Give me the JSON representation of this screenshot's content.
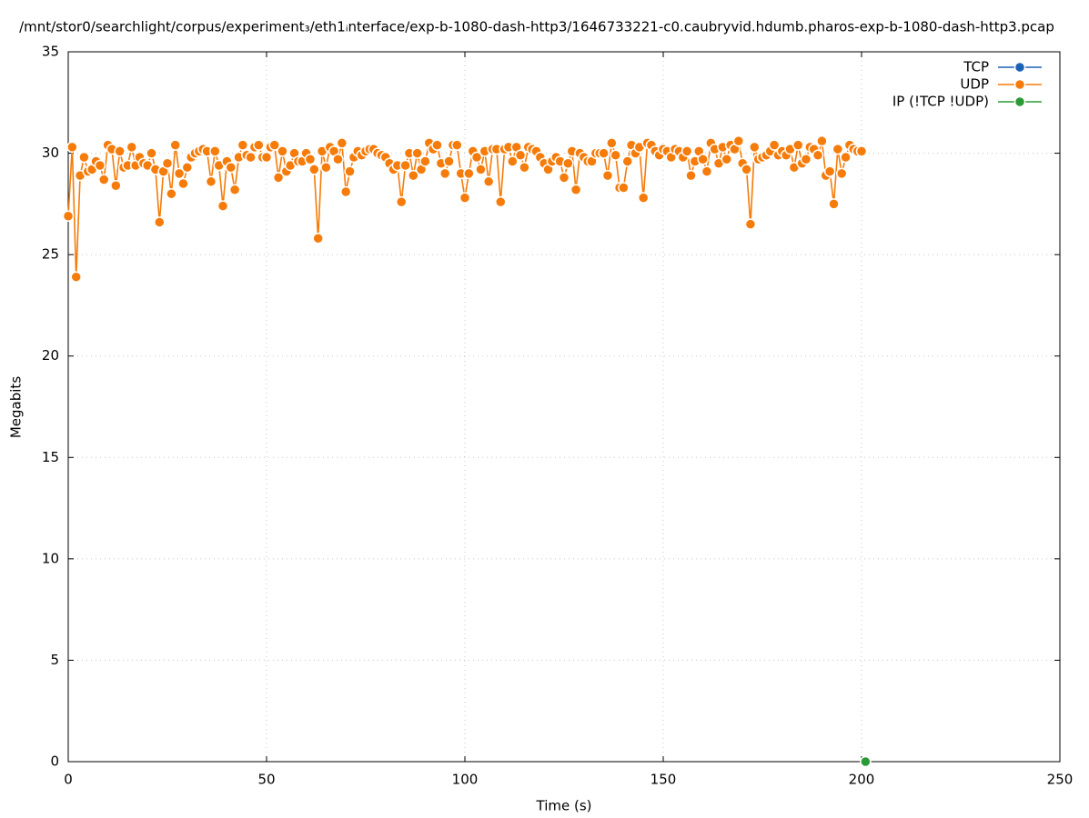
{
  "chart_data": {
    "type": "line",
    "title": "/mnt/stor0/searchlight/corpus/experiment₃/eth1ᵢnterface/exp-b-1080-dash-http3/1646733221-c0.caubryvid.hdumb.pharos-exp-b-1080-dash-http3.pcap",
    "xlabel": "Time (s)",
    "ylabel": "Megabits",
    "xlim": [
      0,
      250
    ],
    "xticks": [
      0,
      50,
      100,
      150,
      200,
      250
    ],
    "ylim": [
      0,
      35
    ],
    "yticks": [
      0,
      5,
      10,
      15,
      20,
      25,
      30,
      35
    ],
    "grid": true,
    "legend": "top-right",
    "series": [
      {
        "name": "TCP",
        "color": "#1a62b4",
        "x": [],
        "values": []
      },
      {
        "name": "UDP",
        "color": "#f57c0a",
        "x": [
          0,
          1,
          2,
          3,
          4,
          5,
          6,
          7,
          8,
          9,
          10,
          11,
          12,
          13,
          14,
          15,
          16,
          17,
          18,
          19,
          20,
          21,
          22,
          23,
          24,
          25,
          26,
          27,
          28,
          29,
          30,
          31,
          32,
          33,
          34,
          35,
          36,
          37,
          38,
          39,
          40,
          41,
          42,
          43,
          44,
          45,
          46,
          47,
          48,
          49,
          50,
          51,
          52,
          53,
          54,
          55,
          56,
          57,
          58,
          59,
          60,
          61,
          62,
          63,
          64,
          65,
          66,
          67,
          68,
          69,
          70,
          71,
          72,
          73,
          74,
          75,
          76,
          77,
          78,
          79,
          80,
          81,
          82,
          83,
          84,
          85,
          86,
          87,
          88,
          89,
          90,
          91,
          92,
          93,
          94,
          95,
          96,
          97,
          98,
          99,
          100,
          101,
          102,
          103,
          104,
          105,
          106,
          107,
          108,
          109,
          110,
          111,
          112,
          113,
          114,
          115,
          116,
          117,
          118,
          119,
          120,
          121,
          122,
          123,
          124,
          125,
          126,
          127,
          128,
          129,
          130,
          131,
          132,
          133,
          134,
          135,
          136,
          137,
          138,
          139,
          140,
          141,
          142,
          143,
          144,
          145,
          146,
          147,
          148,
          149,
          150,
          151,
          152,
          153,
          154,
          155,
          156,
          157,
          158,
          159,
          160,
          161,
          162,
          163,
          164,
          165,
          166,
          167,
          168,
          169,
          170,
          171,
          172,
          173,
          174,
          175,
          176,
          177,
          178,
          179,
          180,
          181,
          182,
          183,
          184,
          185,
          186,
          187,
          188,
          189,
          190,
          191,
          192,
          193,
          194,
          195,
          196,
          197,
          198,
          199,
          200
        ],
        "values": [
          26.9,
          30.3,
          23.9,
          28.9,
          29.8,
          29.1,
          29.2,
          29.6,
          29.4,
          28.7,
          30.4,
          30.2,
          28.4,
          30.1,
          29.3,
          29.4,
          30.3,
          29.4,
          29.8,
          29.5,
          29.4,
          30.0,
          29.2,
          26.6,
          29.1,
          29.5,
          28.0,
          30.4,
          29.0,
          28.5,
          29.3,
          29.8,
          30.0,
          30.1,
          30.2,
          30.1,
          28.6,
          30.1,
          29.4,
          27.4,
          29.6,
          29.3,
          28.2,
          29.8,
          30.4,
          29.9,
          29.8,
          30.3,
          30.4,
          29.8,
          29.8,
          30.3,
          30.4,
          28.8,
          30.1,
          29.1,
          29.4,
          30.0,
          29.6,
          29.6,
          30.0,
          29.7,
          29.2,
          25.8,
          30.1,
          29.3,
          30.3,
          30.1,
          29.7,
          30.5,
          28.1,
          29.1,
          29.8,
          30.1,
          29.9,
          30.1,
          30.2,
          30.2,
          30.0,
          29.9,
          29.8,
          29.5,
          29.2,
          29.4,
          27.6,
          29.4,
          30.0,
          28.9,
          30.0,
          29.2,
          29.6,
          30.5,
          30.2,
          30.4,
          29.5,
          29.0,
          29.6,
          30.4,
          30.4,
          29.0,
          27.8,
          29.0,
          30.1,
          29.8,
          29.2,
          30.1,
          28.6,
          30.2,
          30.2,
          27.6,
          30.2,
          30.3,
          29.6,
          30.3,
          29.9,
          29.3,
          30.3,
          30.2,
          30.1,
          29.8,
          29.5,
          29.2,
          29.6,
          29.8,
          29.6,
          28.8,
          29.5,
          30.1,
          28.2,
          30.0,
          29.8,
          29.6,
          29.6,
          30.0,
          30.0,
          30.0,
          28.9,
          30.5,
          29.9,
          28.3,
          28.3,
          29.6,
          30.4,
          30.0,
          30.3,
          27.8,
          30.5,
          30.4,
          30.1,
          29.9,
          30.2,
          30.1,
          29.8,
          30.2,
          30.1,
          29.8,
          30.1,
          28.9,
          29.6,
          30.1,
          29.7,
          29.1,
          30.5,
          30.2,
          29.5,
          30.3,
          29.7,
          30.4,
          30.2,
          30.6,
          29.5,
          29.2,
          26.5,
          30.3,
          29.7,
          29.8,
          29.9,
          30.1,
          30.4,
          29.9,
          30.1,
          29.9,
          30.2,
          29.3,
          30.4,
          29.5,
          29.7,
          30.3,
          30.2,
          29.9,
          30.6,
          28.9,
          29.1,
          27.5,
          30.2,
          29.0,
          29.8,
          30.4,
          30.2,
          30.1,
          30.1
        ]
      },
      {
        "name": "IP (!TCP  !UDP)",
        "color": "#2b9a34",
        "x": [
          201
        ],
        "values": [
          0
        ]
      }
    ]
  }
}
